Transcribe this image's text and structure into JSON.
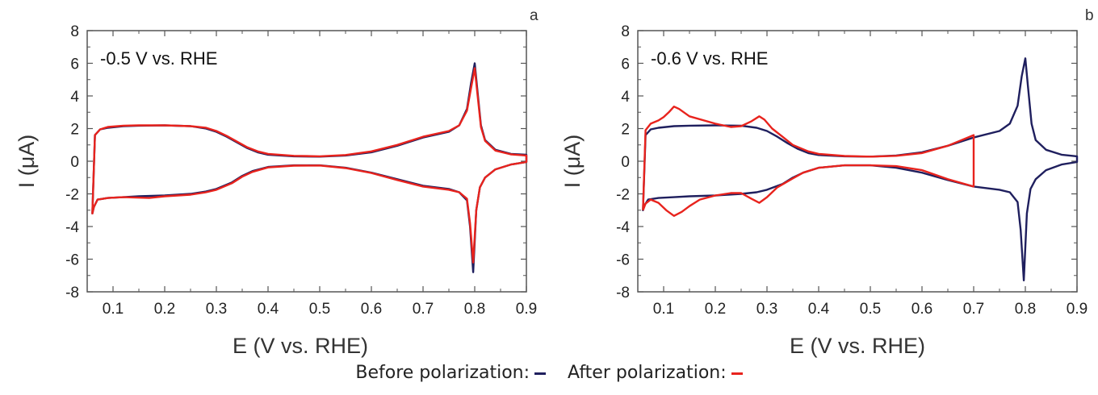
{
  "colors": {
    "before": "#1f1f5e",
    "after": "#e8231d"
  },
  "legend": {
    "before_label": "Before polarization:",
    "after_label": "After polarization:"
  },
  "chart_data": [
    {
      "type": "line",
      "panel_label": "a",
      "annotation": "-0.5 V vs. RHE",
      "xlabel": "E (V vs. RHE)",
      "ylabel": "I (μA)",
      "xlim": [
        0.05,
        0.9
      ],
      "ylim": [
        -8,
        8
      ],
      "xticks": [
        0.1,
        0.2,
        0.3,
        0.4,
        0.5,
        0.6,
        0.7,
        0.8,
        0.9
      ],
      "yticks": [
        8,
        6,
        4,
        2,
        0,
        -2,
        -4,
        -6,
        -8
      ],
      "series": [
        {
          "name": "Before polarization:",
          "anodic": [
            [
              0.06,
              -3.2
            ],
            [
              0.065,
              1.6
            ],
            [
              0.075,
              1.95
            ],
            [
              0.09,
              2.05
            ],
            [
              0.12,
              2.15
            ],
            [
              0.15,
              2.18
            ],
            [
              0.2,
              2.2
            ],
            [
              0.25,
              2.15
            ],
            [
              0.28,
              2.0
            ],
            [
              0.3,
              1.8
            ],
            [
              0.32,
              1.5
            ],
            [
              0.34,
              1.15
            ],
            [
              0.36,
              0.8
            ],
            [
              0.38,
              0.55
            ],
            [
              0.4,
              0.4
            ],
            [
              0.45,
              0.3
            ],
            [
              0.5,
              0.28
            ],
            [
              0.55,
              0.35
            ],
            [
              0.6,
              0.55
            ],
            [
              0.65,
              0.95
            ],
            [
              0.7,
              1.45
            ],
            [
              0.75,
              1.8
            ],
            [
              0.77,
              2.2
            ],
            [
              0.785,
              3.2
            ],
            [
              0.793,
              4.8
            ],
            [
              0.8,
              6.0
            ],
            [
              0.805,
              4.4
            ],
            [
              0.812,
              2.2
            ],
            [
              0.82,
              1.3
            ],
            [
              0.84,
              0.7
            ],
            [
              0.87,
              0.45
            ],
            [
              0.9,
              0.4
            ]
          ],
          "cathodic": [
            [
              0.9,
              -0.05
            ],
            [
              0.87,
              -0.2
            ],
            [
              0.84,
              -0.5
            ],
            [
              0.82,
              -1.0
            ],
            [
              0.81,
              -1.6
            ],
            [
              0.803,
              -3.0
            ],
            [
              0.797,
              -6.8
            ],
            [
              0.791,
              -4.0
            ],
            [
              0.785,
              -2.4
            ],
            [
              0.77,
              -1.9
            ],
            [
              0.75,
              -1.7
            ],
            [
              0.7,
              -1.5
            ],
            [
              0.65,
              -1.1
            ],
            [
              0.6,
              -0.7
            ],
            [
              0.55,
              -0.4
            ],
            [
              0.5,
              -0.25
            ],
            [
              0.45,
              -0.25
            ],
            [
              0.4,
              -0.35
            ],
            [
              0.37,
              -0.6
            ],
            [
              0.35,
              -0.9
            ],
            [
              0.33,
              -1.3
            ],
            [
              0.3,
              -1.7
            ],
            [
              0.28,
              -1.85
            ],
            [
              0.25,
              -2.0
            ],
            [
              0.2,
              -2.1
            ],
            [
              0.15,
              -2.15
            ],
            [
              0.12,
              -2.2
            ],
            [
              0.09,
              -2.25
            ],
            [
              0.07,
              -2.35
            ],
            [
              0.063,
              -2.8
            ],
            [
              0.06,
              -3.2
            ]
          ]
        },
        {
          "name": "After polarization:",
          "anodic": [
            [
              0.06,
              -3.2
            ],
            [
              0.065,
              1.6
            ],
            [
              0.075,
              1.95
            ],
            [
              0.09,
              2.1
            ],
            [
              0.12,
              2.18
            ],
            [
              0.15,
              2.2
            ],
            [
              0.2,
              2.2
            ],
            [
              0.25,
              2.15
            ],
            [
              0.28,
              2.05
            ],
            [
              0.3,
              1.85
            ],
            [
              0.32,
              1.55
            ],
            [
              0.34,
              1.2
            ],
            [
              0.36,
              0.85
            ],
            [
              0.38,
              0.6
            ],
            [
              0.4,
              0.45
            ],
            [
              0.45,
              0.33
            ],
            [
              0.5,
              0.3
            ],
            [
              0.55,
              0.38
            ],
            [
              0.6,
              0.6
            ],
            [
              0.65,
              1.0
            ],
            [
              0.7,
              1.5
            ],
            [
              0.75,
              1.85
            ],
            [
              0.77,
              2.2
            ],
            [
              0.785,
              3.1
            ],
            [
              0.793,
              4.5
            ],
            [
              0.8,
              5.7
            ],
            [
              0.805,
              4.2
            ],
            [
              0.812,
              2.1
            ],
            [
              0.82,
              1.25
            ],
            [
              0.84,
              0.65
            ],
            [
              0.87,
              0.42
            ],
            [
              0.9,
              0.35
            ]
          ],
          "cathodic": [
            [
              0.9,
              -0.05
            ],
            [
              0.87,
              -0.2
            ],
            [
              0.84,
              -0.5
            ],
            [
              0.82,
              -1.0
            ],
            [
              0.81,
              -1.6
            ],
            [
              0.803,
              -3.0
            ],
            [
              0.797,
              -6.2
            ],
            [
              0.791,
              -3.8
            ],
            [
              0.785,
              -2.3
            ],
            [
              0.77,
              -1.9
            ],
            [
              0.75,
              -1.75
            ],
            [
              0.7,
              -1.55
            ],
            [
              0.65,
              -1.15
            ],
            [
              0.6,
              -0.72
            ],
            [
              0.55,
              -0.42
            ],
            [
              0.5,
              -0.26
            ],
            [
              0.45,
              -0.27
            ],
            [
              0.4,
              -0.38
            ],
            [
              0.37,
              -0.65
            ],
            [
              0.35,
              -0.95
            ],
            [
              0.33,
              -1.35
            ],
            [
              0.3,
              -1.75
            ],
            [
              0.28,
              -1.9
            ],
            [
              0.25,
              -2.05
            ],
            [
              0.2,
              -2.15
            ],
            [
              0.17,
              -2.25
            ],
            [
              0.12,
              -2.2
            ],
            [
              0.09,
              -2.25
            ],
            [
              0.07,
              -2.35
            ],
            [
              0.063,
              -2.8
            ],
            [
              0.06,
              -3.2
            ]
          ]
        }
      ]
    },
    {
      "type": "line",
      "panel_label": "b",
      "annotation": "-0.6 V vs. RHE",
      "xlabel": "E (V vs. RHE)",
      "ylabel": "I (μA)",
      "xlim": [
        0.05,
        0.9
      ],
      "ylim": [
        -8,
        8
      ],
      "xticks": [
        0.1,
        0.2,
        0.3,
        0.4,
        0.5,
        0.6,
        0.7,
        0.8,
        0.9
      ],
      "yticks": [
        8,
        6,
        4,
        2,
        0,
        -2,
        -4,
        -6,
        -8
      ],
      "series": [
        {
          "name": "Before polarization:",
          "anodic": [
            [
              0.06,
              -3.0
            ],
            [
              0.065,
              1.6
            ],
            [
              0.075,
              1.95
            ],
            [
              0.09,
              2.05
            ],
            [
              0.12,
              2.15
            ],
            [
              0.15,
              2.18
            ],
            [
              0.2,
              2.2
            ],
            [
              0.25,
              2.18
            ],
            [
              0.28,
              2.05
            ],
            [
              0.3,
              1.85
            ],
            [
              0.32,
              1.5
            ],
            [
              0.34,
              1.1
            ],
            [
              0.36,
              0.75
            ],
            [
              0.38,
              0.5
            ],
            [
              0.4,
              0.38
            ],
            [
              0.45,
              0.3
            ],
            [
              0.5,
              0.28
            ],
            [
              0.55,
              0.35
            ],
            [
              0.6,
              0.55
            ],
            [
              0.65,
              0.95
            ],
            [
              0.7,
              1.45
            ],
            [
              0.75,
              1.85
            ],
            [
              0.77,
              2.3
            ],
            [
              0.785,
              3.4
            ],
            [
              0.793,
              5.2
            ],
            [
              0.8,
              6.3
            ],
            [
              0.805,
              4.6
            ],
            [
              0.812,
              2.3
            ],
            [
              0.82,
              1.3
            ],
            [
              0.84,
              0.7
            ],
            [
              0.87,
              0.4
            ],
            [
              0.9,
              0.3
            ]
          ],
          "cathodic": [
            [
              0.9,
              -0.05
            ],
            [
              0.87,
              -0.2
            ],
            [
              0.84,
              -0.55
            ],
            [
              0.82,
              -1.1
            ],
            [
              0.81,
              -1.7
            ],
            [
              0.803,
              -3.2
            ],
            [
              0.797,
              -7.3
            ],
            [
              0.791,
              -4.2
            ],
            [
              0.785,
              -2.5
            ],
            [
              0.77,
              -1.9
            ],
            [
              0.75,
              -1.75
            ],
            [
              0.7,
              -1.55
            ],
            [
              0.65,
              -1.15
            ],
            [
              0.6,
              -0.7
            ],
            [
              0.55,
              -0.4
            ],
            [
              0.5,
              -0.25
            ],
            [
              0.45,
              -0.25
            ],
            [
              0.4,
              -0.4
            ],
            [
              0.37,
              -0.7
            ],
            [
              0.35,
              -1.0
            ],
            [
              0.33,
              -1.4
            ],
            [
              0.3,
              -1.75
            ],
            [
              0.28,
              -1.9
            ],
            [
              0.25,
              -2.0
            ],
            [
              0.2,
              -2.1
            ],
            [
              0.15,
              -2.15
            ],
            [
              0.12,
              -2.2
            ],
            [
              0.09,
              -2.25
            ],
            [
              0.07,
              -2.35
            ],
            [
              0.063,
              -2.7
            ],
            [
              0.06,
              -3.0
            ]
          ]
        },
        {
          "name": "After polarization:",
          "anodic": [
            [
              0.06,
              -3.0
            ],
            [
              0.065,
              1.9
            ],
            [
              0.075,
              2.3
            ],
            [
              0.09,
              2.5
            ],
            [
              0.1,
              2.7
            ],
            [
              0.11,
              3.0
            ],
            [
              0.12,
              3.35
            ],
            [
              0.13,
              3.2
            ],
            [
              0.15,
              2.75
            ],
            [
              0.2,
              2.3
            ],
            [
              0.23,
              2.1
            ],
            [
              0.25,
              2.15
            ],
            [
              0.27,
              2.45
            ],
            [
              0.285,
              2.75
            ],
            [
              0.295,
              2.55
            ],
            [
              0.31,
              2.0
            ],
            [
              0.33,
              1.5
            ],
            [
              0.35,
              1.0
            ],
            [
              0.38,
              0.6
            ],
            [
              0.4,
              0.45
            ],
            [
              0.45,
              0.32
            ],
            [
              0.5,
              0.28
            ],
            [
              0.55,
              0.33
            ],
            [
              0.6,
              0.5
            ],
            [
              0.65,
              0.95
            ],
            [
              0.7,
              1.6
            ]
          ],
          "cathodic": [
            [
              0.7,
              -1.55
            ],
            [
              0.65,
              -1.1
            ],
            [
              0.6,
              -0.55
            ],
            [
              0.55,
              -0.3
            ],
            [
              0.5,
              -0.25
            ],
            [
              0.45,
              -0.25
            ],
            [
              0.4,
              -0.4
            ],
            [
              0.37,
              -0.7
            ],
            [
              0.35,
              -1.05
            ],
            [
              0.32,
              -1.6
            ],
            [
              0.3,
              -2.2
            ],
            [
              0.285,
              -2.55
            ],
            [
              0.27,
              -2.3
            ],
            [
              0.25,
              -1.95
            ],
            [
              0.23,
              -1.95
            ],
            [
              0.2,
              -2.1
            ],
            [
              0.17,
              -2.35
            ],
            [
              0.15,
              -2.75
            ],
            [
              0.135,
              -3.1
            ],
            [
              0.12,
              -3.35
            ],
            [
              0.105,
              -3.0
            ],
            [
              0.09,
              -2.55
            ],
            [
              0.075,
              -2.35
            ],
            [
              0.065,
              -2.6
            ],
            [
              0.06,
              -3.0
            ]
          ]
        }
      ]
    }
  ]
}
